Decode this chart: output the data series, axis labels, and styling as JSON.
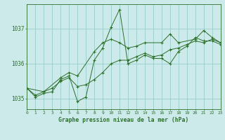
{
  "title": "Graphe pression niveau de la mer (hPa)",
  "bg_color": "#cceaea",
  "grid_color": "#99cccc",
  "line_color": "#2d6e2d",
  "x_min": 0,
  "x_max": 23,
  "y_min": 1034.7,
  "y_max": 1037.7,
  "yticks": [
    1035,
    1036,
    1037
  ],
  "series1": [
    [
      0,
      1035.3
    ],
    [
      1,
      1035.05
    ],
    [
      2,
      1035.15
    ],
    [
      3,
      1035.2
    ],
    [
      4,
      1035.55
    ],
    [
      5,
      1035.65
    ],
    [
      6,
      1034.92
    ],
    [
      7,
      1035.05
    ],
    [
      8,
      1036.1
    ],
    [
      9,
      1036.45
    ],
    [
      10,
      1037.05
    ],
    [
      11,
      1037.55
    ],
    [
      12,
      1036.0
    ],
    [
      13,
      1036.1
    ],
    [
      14,
      1036.25
    ],
    [
      15,
      1036.15
    ],
    [
      16,
      1036.15
    ],
    [
      17,
      1036.0
    ],
    [
      18,
      1036.35
    ],
    [
      19,
      1036.5
    ],
    [
      20,
      1036.75
    ],
    [
      21,
      1036.65
    ],
    [
      22,
      1036.65
    ],
    [
      23,
      1036.55
    ]
  ],
  "series2": [
    [
      0,
      1035.3
    ],
    [
      1,
      1035.1
    ],
    [
      2,
      1035.2
    ],
    [
      3,
      1035.3
    ],
    [
      4,
      1035.5
    ],
    [
      5,
      1035.6
    ],
    [
      6,
      1035.35
    ],
    [
      7,
      1035.4
    ],
    [
      8,
      1035.55
    ],
    [
      9,
      1035.75
    ],
    [
      10,
      1036.0
    ],
    [
      11,
      1036.1
    ],
    [
      12,
      1036.1
    ],
    [
      13,
      1036.2
    ],
    [
      14,
      1036.3
    ],
    [
      15,
      1036.2
    ],
    [
      16,
      1036.25
    ],
    [
      17,
      1036.4
    ],
    [
      18,
      1036.45
    ],
    [
      19,
      1036.55
    ],
    [
      20,
      1036.65
    ],
    [
      21,
      1036.6
    ],
    [
      22,
      1036.7
    ],
    [
      23,
      1036.6
    ]
  ],
  "series3": [
    [
      0,
      1035.3
    ],
    [
      2,
      1035.2
    ],
    [
      4,
      1035.6
    ],
    [
      5,
      1035.75
    ],
    [
      6,
      1035.65
    ],
    [
      8,
      1036.35
    ],
    [
      9,
      1036.6
    ],
    [
      10,
      1036.7
    ],
    [
      11,
      1036.6
    ],
    [
      12,
      1036.45
    ],
    [
      13,
      1036.5
    ],
    [
      14,
      1036.6
    ],
    [
      16,
      1036.6
    ],
    [
      17,
      1036.85
    ],
    [
      18,
      1036.6
    ],
    [
      20,
      1036.7
    ],
    [
      21,
      1036.95
    ],
    [
      22,
      1036.75
    ],
    [
      23,
      1036.6
    ]
  ]
}
